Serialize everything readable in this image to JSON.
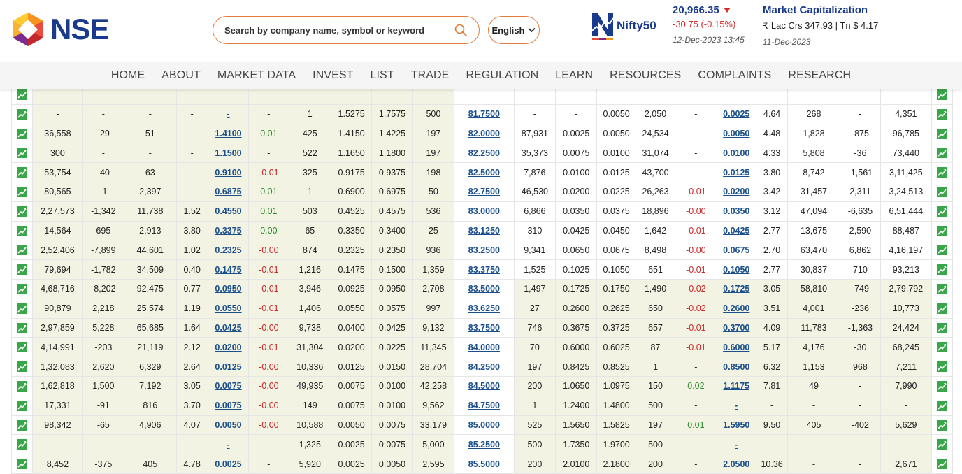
{
  "header": {
    "logo_text": "NSE",
    "search_placeholder": "Search by company name, symbol or keyword",
    "language": "English",
    "nifty": {
      "brand_prefix": "Nifty",
      "brand_num": "50",
      "value": "20,966.35",
      "change": "-30.75 (-0.15%)",
      "timestamp": "12-Dec-2023 13:45"
    },
    "market_cap": {
      "title": "Market Capitalization",
      "value": "₹ Lac Crs 347.93 | Tn $ 4.17",
      "date": "11-Dec-2023"
    }
  },
  "nav": [
    "HOME",
    "ABOUT",
    "MARKET DATA",
    "INVEST",
    "LIST",
    "TRADE",
    "REGULATION",
    "LEARN",
    "RESOURCES",
    "COMPLAINTS",
    "RESEARCH"
  ],
  "colors": {
    "accent": "#e07b39",
    "brand": "#1a3a8c",
    "negative": "#d32f2f",
    "positive": "#2e8b2e",
    "itm": "#f3f3e3"
  },
  "icons": {
    "chart": "chart-icon",
    "search": "search-icon",
    "chevron": "chevron-down-icon",
    "price_down": "caret-down-icon"
  },
  "table": {
    "rows": [
      [
        "",
        "",
        "",
        "",
        "",
        "",
        "",
        "",
        "",
        "",
        "",
        "",
        "",
        "",
        "",
        "",
        "",
        "",
        "",
        "",
        ""
      ],
      [
        "-",
        "-",
        "-",
        "-",
        "-",
        "-",
        "1",
        "1.5275",
        "1.7575",
        "500",
        "81.7500",
        "-",
        "-",
        "0.0050",
        "2,050",
        "-",
        "0.0025",
        "4.64",
        "268",
        "-",
        "4,351"
      ],
      [
        "36,558",
        "-29",
        "51",
        "-",
        "1.4100",
        "0.01",
        "425",
        "1.4150",
        "1.4225",
        "197",
        "82.0000",
        "87,931",
        "0.0025",
        "0.0050",
        "24,534",
        "-",
        "0.0050",
        "4.48",
        "1,828",
        "-875",
        "96,785"
      ],
      [
        "300",
        "-",
        "-",
        "-",
        "1.1500",
        "-",
        "522",
        "1.1650",
        "1.1800",
        "197",
        "82.2500",
        "35,373",
        "0.0075",
        "0.0100",
        "31,074",
        "-",
        "0.0100",
        "4.33",
        "5,808",
        "-36",
        "73,440"
      ],
      [
        "53,754",
        "-40",
        "63",
        "-",
        "0.9100",
        "-0.01",
        "325",
        "0.9175",
        "0.9375",
        "198",
        "82.5000",
        "7,876",
        "0.0100",
        "0.0125",
        "43,700",
        "-",
        "0.0125",
        "3.80",
        "8,742",
        "-1,561",
        "3,11,425"
      ],
      [
        "80,565",
        "-1",
        "2,397",
        "-",
        "0.6875",
        "0.01",
        "1",
        "0.6900",
        "0.6975",
        "50",
        "82.7500",
        "46,530",
        "0.0200",
        "0.0225",
        "26,263",
        "-0.01",
        "0.0200",
        "3.42",
        "31,457",
        "2,311",
        "3,24,513"
      ],
      [
        "2,27,573",
        "-1,342",
        "11,738",
        "1.52",
        "0.4550",
        "0.01",
        "503",
        "0.4525",
        "0.4575",
        "536",
        "83.0000",
        "6,866",
        "0.0350",
        "0.0375",
        "18,896",
        "-0.00",
        "0.0350",
        "3.12",
        "47,094",
        "-6,635",
        "6,51,444"
      ],
      [
        "14,564",
        "695",
        "2,913",
        "3.80",
        "0.3375",
        "0.00",
        "65",
        "0.3350",
        "0.3400",
        "25",
        "83.1250",
        "310",
        "0.0425",
        "0.0450",
        "1,642",
        "-0.01",
        "0.0425",
        "2.77",
        "13,675",
        "2,590",
        "88,487"
      ],
      [
        "2,52,406",
        "-7,899",
        "44,601",
        "1.02",
        "0.2325",
        "-0.00",
        "874",
        "0.2325",
        "0.2350",
        "936",
        "83.2500",
        "9,341",
        "0.0650",
        "0.0675",
        "8,498",
        "-0.00",
        "0.0675",
        "2.70",
        "63,470",
        "6,862",
        "4,16,197"
      ],
      [
        "79,694",
        "-1,782",
        "34,509",
        "0.40",
        "0.1475",
        "-0.01",
        "1,216",
        "0.1475",
        "0.1500",
        "1,359",
        "83.3750",
        "1,525",
        "0.1025",
        "0.1050",
        "651",
        "-0.01",
        "0.1050",
        "2.77",
        "30,837",
        "710",
        "93,213"
      ],
      [
        "4,68,716",
        "-8,202",
        "92,475",
        "0.77",
        "0.0950",
        "-0.01",
        "3,946",
        "0.0925",
        "0.0950",
        "2,708",
        "83.5000",
        "1,497",
        "0.1725",
        "0.1750",
        "1,490",
        "-0.02",
        "0.1725",
        "3.05",
        "58,810",
        "-749",
        "2,79,792"
      ],
      [
        "90,879",
        "2,218",
        "25,574",
        "1.19",
        "0.0550",
        "-0.01",
        "1,406",
        "0.0550",
        "0.0575",
        "997",
        "83.6250",
        "27",
        "0.2600",
        "0.2625",
        "650",
        "-0.02",
        "0.2600",
        "3.51",
        "4,001",
        "-236",
        "10,773"
      ],
      [
        "2,97,859",
        "5,228",
        "65,685",
        "1.64",
        "0.0425",
        "-0.00",
        "9,738",
        "0.0400",
        "0.0425",
        "9,132",
        "83.7500",
        "746",
        "0.3675",
        "0.3725",
        "657",
        "-0.01",
        "0.3700",
        "4.09",
        "11,783",
        "-1,363",
        "24,424"
      ],
      [
        "4,14,991",
        "-203",
        "21,119",
        "2.12",
        "0.0200",
        "-0.01",
        "31,304",
        "0.0200",
        "0.0225",
        "11,345",
        "84.0000",
        "70",
        "0.6000",
        "0.6025",
        "87",
        "-0.01",
        "0.6000",
        "5.17",
        "4,176",
        "-30",
        "68,245"
      ],
      [
        "1,32,083",
        "2,620",
        "6,329",
        "2.64",
        "0.0125",
        "-0.00",
        "10,336",
        "0.0125",
        "0.0150",
        "28,704",
        "84.2500",
        "197",
        "0.8425",
        "0.8525",
        "1",
        "-",
        "0.8500",
        "6.32",
        "1,153",
        "968",
        "7,211"
      ],
      [
        "1,62,818",
        "1,500",
        "7,192",
        "3.05",
        "0.0075",
        "-0.00",
        "49,935",
        "0.0075",
        "0.0100",
        "42,258",
        "84.5000",
        "200",
        "1.0650",
        "1.0975",
        "150",
        "0.02",
        "1.1175",
        "7.81",
        "49",
        "-",
        "7,990"
      ],
      [
        "17,331",
        "-91",
        "816",
        "3.70",
        "0.0075",
        "-0.00",
        "149",
        "0.0075",
        "0.0100",
        "9,562",
        "84.7500",
        "1",
        "1.2400",
        "1.4800",
        "500",
        "-",
        "-",
        "-",
        "-",
        "-",
        "-"
      ],
      [
        "98,342",
        "-65",
        "4,906",
        "4.07",
        "0.0050",
        "-0.00",
        "10,588",
        "0.0050",
        "0.0075",
        "33,179",
        "85.0000",
        "525",
        "1.5650",
        "1.5825",
        "197",
        "0.01",
        "1.5950",
        "9.50",
        "405",
        "-402",
        "5,629"
      ],
      [
        "-",
        "-",
        "-",
        "-",
        "-",
        "-",
        "1,325",
        "0.0025",
        "0.0075",
        "5,000",
        "85.2500",
        "500",
        "1.7350",
        "1.9700",
        "500",
        "-",
        "-",
        "-",
        "-",
        "-",
        "-"
      ],
      [
        "8,452",
        "-375",
        "405",
        "4.78",
        "0.0025",
        "-",
        "5,920",
        "0.0025",
        "0.0050",
        "2,595",
        "85.5000",
        "200",
        "2.0100",
        "2.1800",
        "200",
        "-",
        "2.0500",
        "10.36",
        "-",
        "-",
        "2,671"
      ]
    ],
    "put_itm_from_row": 10
  }
}
